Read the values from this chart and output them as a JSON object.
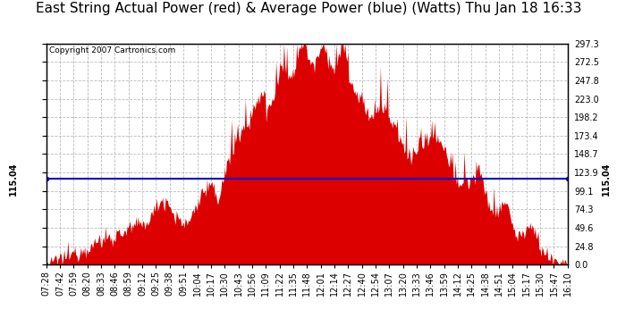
{
  "title": "East String Actual Power (red) & Average Power (blue) (Watts) Thu Jan 18 16:33",
  "copyright_text": "Copyright 2007 Cartronics.com",
  "average_power": 115.04,
  "y_max": 297.3,
  "y_min": 0.0,
  "y_ticks": [
    0.0,
    24.8,
    49.6,
    74.3,
    99.1,
    123.9,
    148.7,
    173.4,
    198.2,
    223.0,
    247.8,
    272.5,
    297.3
  ],
  "x_labels": [
    "07:28",
    "07:42",
    "07:59",
    "08:20",
    "08:33",
    "08:46",
    "08:59",
    "09:12",
    "09:25",
    "09:38",
    "09:51",
    "10:04",
    "10:17",
    "10:30",
    "10:43",
    "10:56",
    "11:09",
    "11:22",
    "11:35",
    "11:48",
    "12:01",
    "12:14",
    "12:27",
    "12:40",
    "12:54",
    "13:07",
    "13:20",
    "13:33",
    "13:46",
    "13:59",
    "14:12",
    "14:25",
    "14:38",
    "14:51",
    "15:04",
    "15:17",
    "15:30",
    "15:47",
    "16:10"
  ],
  "background_color": "#ffffff",
  "plot_bg_color": "#ffffff",
  "bar_color": "#dd0000",
  "avg_line_color": "#0000cc",
  "grid_color": "#bbbbbb",
  "title_fontsize": 11,
  "tick_fontsize": 7,
  "copyright_fontsize": 6.5
}
